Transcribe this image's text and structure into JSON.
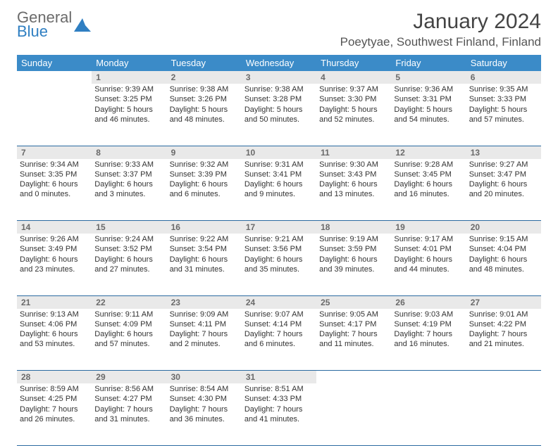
{
  "logo": {
    "word1": "General",
    "word2": "Blue"
  },
  "title": "January 2024",
  "location": "Poeytyae, Southwest Finland, Finland",
  "colors": {
    "header_bg": "#3b8bc8",
    "header_text": "#ffffff",
    "daynum_bg": "#e9e9e9",
    "daynum_text": "#6a6a6a",
    "row_border": "#2a6aa0",
    "body_text": "#333333",
    "logo_gray": "#6b6b6b",
    "logo_blue": "#2f7fc2"
  },
  "day_headers": [
    "Sunday",
    "Monday",
    "Tuesday",
    "Wednesday",
    "Thursday",
    "Friday",
    "Saturday"
  ],
  "weeks": [
    [
      null,
      {
        "n": "1",
        "sr": "9:39 AM",
        "ss": "3:25 PM",
        "dl": "5 hours and 46 minutes."
      },
      {
        "n": "2",
        "sr": "9:38 AM",
        "ss": "3:26 PM",
        "dl": "5 hours and 48 minutes."
      },
      {
        "n": "3",
        "sr": "9:38 AM",
        "ss": "3:28 PM",
        "dl": "5 hours and 50 minutes."
      },
      {
        "n": "4",
        "sr": "9:37 AM",
        "ss": "3:30 PM",
        "dl": "5 hours and 52 minutes."
      },
      {
        "n": "5",
        "sr": "9:36 AM",
        "ss": "3:31 PM",
        "dl": "5 hours and 54 minutes."
      },
      {
        "n": "6",
        "sr": "9:35 AM",
        "ss": "3:33 PM",
        "dl": "5 hours and 57 minutes."
      }
    ],
    [
      {
        "n": "7",
        "sr": "9:34 AM",
        "ss": "3:35 PM",
        "dl": "6 hours and 0 minutes."
      },
      {
        "n": "8",
        "sr": "9:33 AM",
        "ss": "3:37 PM",
        "dl": "6 hours and 3 minutes."
      },
      {
        "n": "9",
        "sr": "9:32 AM",
        "ss": "3:39 PM",
        "dl": "6 hours and 6 minutes."
      },
      {
        "n": "10",
        "sr": "9:31 AM",
        "ss": "3:41 PM",
        "dl": "6 hours and 9 minutes."
      },
      {
        "n": "11",
        "sr": "9:30 AM",
        "ss": "3:43 PM",
        "dl": "6 hours and 13 minutes."
      },
      {
        "n": "12",
        "sr": "9:28 AM",
        "ss": "3:45 PM",
        "dl": "6 hours and 16 minutes."
      },
      {
        "n": "13",
        "sr": "9:27 AM",
        "ss": "3:47 PM",
        "dl": "6 hours and 20 minutes."
      }
    ],
    [
      {
        "n": "14",
        "sr": "9:26 AM",
        "ss": "3:49 PM",
        "dl": "6 hours and 23 minutes."
      },
      {
        "n": "15",
        "sr": "9:24 AM",
        "ss": "3:52 PM",
        "dl": "6 hours and 27 minutes."
      },
      {
        "n": "16",
        "sr": "9:22 AM",
        "ss": "3:54 PM",
        "dl": "6 hours and 31 minutes."
      },
      {
        "n": "17",
        "sr": "9:21 AM",
        "ss": "3:56 PM",
        "dl": "6 hours and 35 minutes."
      },
      {
        "n": "18",
        "sr": "9:19 AM",
        "ss": "3:59 PM",
        "dl": "6 hours and 39 minutes."
      },
      {
        "n": "19",
        "sr": "9:17 AM",
        "ss": "4:01 PM",
        "dl": "6 hours and 44 minutes."
      },
      {
        "n": "20",
        "sr": "9:15 AM",
        "ss": "4:04 PM",
        "dl": "6 hours and 48 minutes."
      }
    ],
    [
      {
        "n": "21",
        "sr": "9:13 AM",
        "ss": "4:06 PM",
        "dl": "6 hours and 53 minutes."
      },
      {
        "n": "22",
        "sr": "9:11 AM",
        "ss": "4:09 PM",
        "dl": "6 hours and 57 minutes."
      },
      {
        "n": "23",
        "sr": "9:09 AM",
        "ss": "4:11 PM",
        "dl": "7 hours and 2 minutes."
      },
      {
        "n": "24",
        "sr": "9:07 AM",
        "ss": "4:14 PM",
        "dl": "7 hours and 6 minutes."
      },
      {
        "n": "25",
        "sr": "9:05 AM",
        "ss": "4:17 PM",
        "dl": "7 hours and 11 minutes."
      },
      {
        "n": "26",
        "sr": "9:03 AM",
        "ss": "4:19 PM",
        "dl": "7 hours and 16 minutes."
      },
      {
        "n": "27",
        "sr": "9:01 AM",
        "ss": "4:22 PM",
        "dl": "7 hours and 21 minutes."
      }
    ],
    [
      {
        "n": "28",
        "sr": "8:59 AM",
        "ss": "4:25 PM",
        "dl": "7 hours and 26 minutes."
      },
      {
        "n": "29",
        "sr": "8:56 AM",
        "ss": "4:27 PM",
        "dl": "7 hours and 31 minutes."
      },
      {
        "n": "30",
        "sr": "8:54 AM",
        "ss": "4:30 PM",
        "dl": "7 hours and 36 minutes."
      },
      {
        "n": "31",
        "sr": "8:51 AM",
        "ss": "4:33 PM",
        "dl": "7 hours and 41 minutes."
      },
      null,
      null,
      null
    ]
  ],
  "labels": {
    "sunrise": "Sunrise: ",
    "sunset": "Sunset: ",
    "daylight": "Daylight: "
  }
}
